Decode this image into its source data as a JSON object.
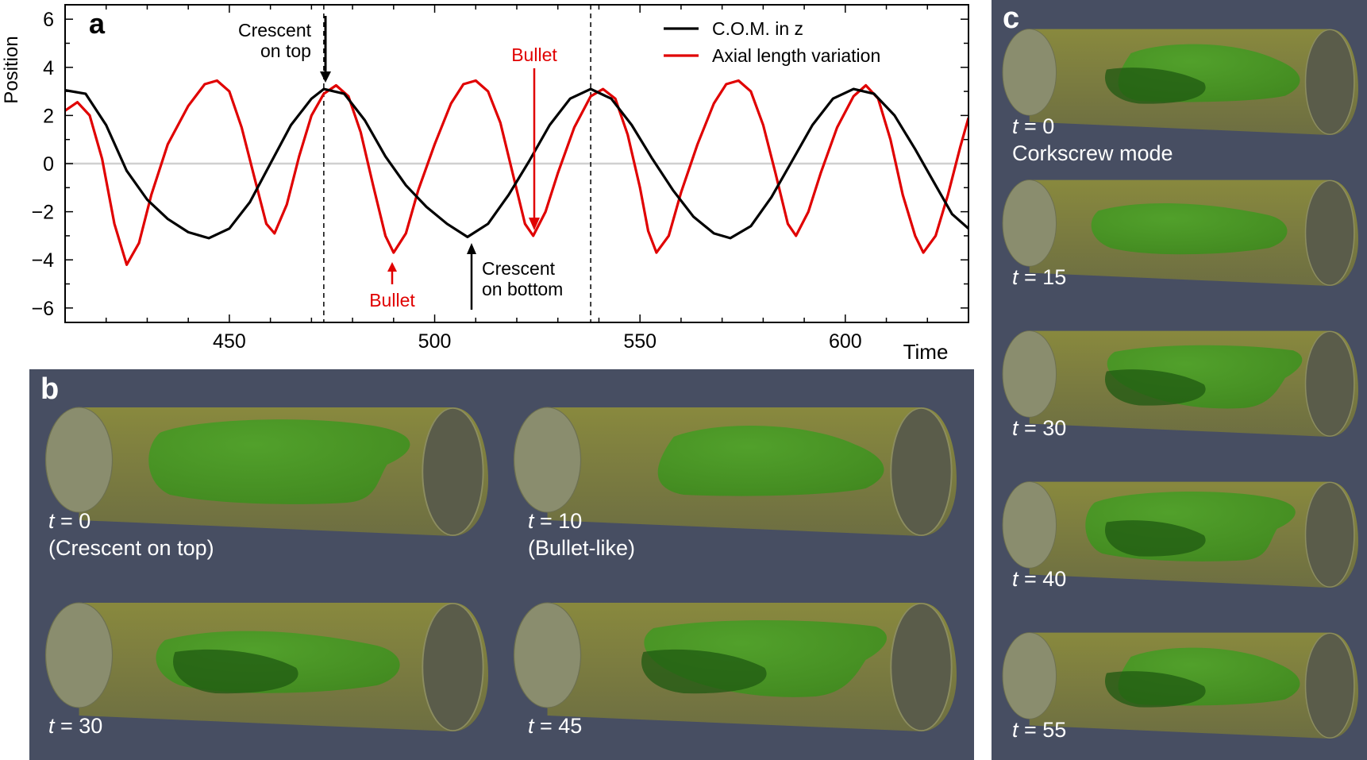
{
  "panel_a": {
    "letter": "a",
    "annotations": {
      "crescent_top_line1": "Crescent",
      "crescent_top_line2": "on top",
      "bullet_1": "Bullet",
      "bullet_2": "Bullet",
      "crescent_bottom_line1": "Crescent",
      "crescent_bottom_line2": "on bottom"
    }
  },
  "chart_data": {
    "type": "line",
    "xlabel": "Time",
    "ylabel": "Position",
    "xlim": [
      410,
      630
    ],
    "ylim": [
      -6.6,
      6.6
    ],
    "xticks": [
      450,
      500,
      550,
      600
    ],
    "yticks": [
      6,
      4,
      2,
      0,
      -2,
      -4,
      -6
    ],
    "ytick_labels": [
      "6",
      "4",
      "2",
      "0",
      "−2",
      "−4",
      "−6"
    ],
    "grid": false,
    "zero_line": true,
    "legend_position": "top-right",
    "vlines": [
      473,
      538
    ],
    "series": [
      {
        "name": "C.O.M. in z",
        "color": "#000000",
        "points": [
          [
            410,
            3.05
          ],
          [
            415,
            2.9
          ],
          [
            420,
            1.6
          ],
          [
            425,
            -0.3
          ],
          [
            430,
            -1.5
          ],
          [
            435,
            -2.3
          ],
          [
            440,
            -2.85
          ],
          [
            445,
            -3.1
          ],
          [
            450,
            -2.7
          ],
          [
            455,
            -1.6
          ],
          [
            460,
            0.0
          ],
          [
            465,
            1.6
          ],
          [
            470,
            2.7
          ],
          [
            473,
            3.1
          ],
          [
            478,
            2.9
          ],
          [
            483,
            1.8
          ],
          [
            488,
            0.3
          ],
          [
            493,
            -0.9
          ],
          [
            498,
            -1.8
          ],
          [
            503,
            -2.5
          ],
          [
            508,
            -3.05
          ],
          [
            513,
            -2.5
          ],
          [
            518,
            -1.3
          ],
          [
            523,
            0.1
          ],
          [
            528,
            1.6
          ],
          [
            533,
            2.7
          ],
          [
            538,
            3.1
          ],
          [
            543,
            2.7
          ],
          [
            548,
            1.6
          ],
          [
            553,
            0.2
          ],
          [
            558,
            -1.1
          ],
          [
            563,
            -2.2
          ],
          [
            568,
            -2.9
          ],
          [
            572,
            -3.1
          ],
          [
            577,
            -2.6
          ],
          [
            582,
            -1.4
          ],
          [
            587,
            0.1
          ],
          [
            592,
            1.6
          ],
          [
            597,
            2.7
          ],
          [
            602,
            3.1
          ],
          [
            607,
            2.9
          ],
          [
            612,
            2.0
          ],
          [
            617,
            0.6
          ],
          [
            622,
            -0.9
          ],
          [
            626,
            -2.1
          ],
          [
            630,
            -2.7
          ]
        ]
      },
      {
        "name": "Axial length variation",
        "color": "#e00000",
        "points": [
          [
            410,
            2.2
          ],
          [
            413,
            2.55
          ],
          [
            416,
            2.0
          ],
          [
            419,
            0.2
          ],
          [
            422,
            -2.5
          ],
          [
            425,
            -4.2
          ],
          [
            428,
            -3.3
          ],
          [
            431,
            -1.3
          ],
          [
            435,
            0.8
          ],
          [
            440,
            2.4
          ],
          [
            444,
            3.3
          ],
          [
            447,
            3.45
          ],
          [
            450,
            3.0
          ],
          [
            453,
            1.5
          ],
          [
            456,
            -0.5
          ],
          [
            459,
            -2.5
          ],
          [
            461,
            -2.9
          ],
          [
            464,
            -1.7
          ],
          [
            467,
            0.3
          ],
          [
            470,
            2.0
          ],
          [
            473,
            2.9
          ],
          [
            476,
            3.25
          ],
          [
            479,
            2.8
          ],
          [
            482,
            1.3
          ],
          [
            485,
            -0.9
          ],
          [
            488,
            -3.0
          ],
          [
            490,
            -3.7
          ],
          [
            493,
            -2.9
          ],
          [
            496,
            -1.1
          ],
          [
            500,
            0.8
          ],
          [
            504,
            2.5
          ],
          [
            507,
            3.3
          ],
          [
            510,
            3.45
          ],
          [
            513,
            3.0
          ],
          [
            516,
            1.7
          ],
          [
            519,
            -0.4
          ],
          [
            522,
            -2.5
          ],
          [
            524,
            -3.0
          ],
          [
            527,
            -2.0
          ],
          [
            530,
            -0.4
          ],
          [
            534,
            1.5
          ],
          [
            538,
            2.8
          ],
          [
            541,
            3.1
          ],
          [
            544,
            2.7
          ],
          [
            547,
            1.2
          ],
          [
            550,
            -1.0
          ],
          [
            552,
            -2.8
          ],
          [
            554,
            -3.7
          ],
          [
            557,
            -3.0
          ],
          [
            560,
            -1.2
          ],
          [
            564,
            0.8
          ],
          [
            568,
            2.5
          ],
          [
            571,
            3.3
          ],
          [
            574,
            3.45
          ],
          [
            577,
            3.0
          ],
          [
            580,
            1.6
          ],
          [
            583,
            -0.4
          ],
          [
            586,
            -2.5
          ],
          [
            588,
            -3.0
          ],
          [
            591,
            -2.0
          ],
          [
            594,
            -0.4
          ],
          [
            598,
            1.5
          ],
          [
            602,
            2.8
          ],
          [
            605,
            3.25
          ],
          [
            608,
            2.7
          ],
          [
            611,
            1.0
          ],
          [
            614,
            -1.3
          ],
          [
            617,
            -3.0
          ],
          [
            619,
            -3.7
          ],
          [
            622,
            -3.0
          ],
          [
            625,
            -1.3
          ],
          [
            628,
            0.7
          ],
          [
            630,
            1.9
          ]
        ]
      }
    ]
  },
  "panel_b": {
    "letter": "b",
    "cells": [
      {
        "t": "t",
        "eq": " = 0",
        "sub": "(Crescent on top)"
      },
      {
        "t": "t",
        "eq": " = 10",
        "sub": "(Bullet-like)"
      },
      {
        "t": "t",
        "eq": " = 30",
        "sub": ""
      },
      {
        "t": "t",
        "eq": " = 45",
        "sub": ""
      }
    ]
  },
  "panel_c": {
    "letter": "c",
    "cells": [
      {
        "t": "t",
        "eq": " = 0",
        "sub": "Corkscrew mode"
      },
      {
        "t": "t",
        "eq": " = 15",
        "sub": ""
      },
      {
        "t": "t",
        "eq": " = 30",
        "sub": ""
      },
      {
        "t": "t",
        "eq": " = 40",
        "sub": ""
      },
      {
        "t": "t",
        "eq": " = 55",
        "sub": ""
      }
    ]
  },
  "colors": {
    "panel_bg": "#474e62",
    "tube": "#8c8c3c",
    "blob": "#3f8a1e",
    "blob_dark": "#1f5a12",
    "com_line": "#000000",
    "axial_line": "#e00000"
  }
}
